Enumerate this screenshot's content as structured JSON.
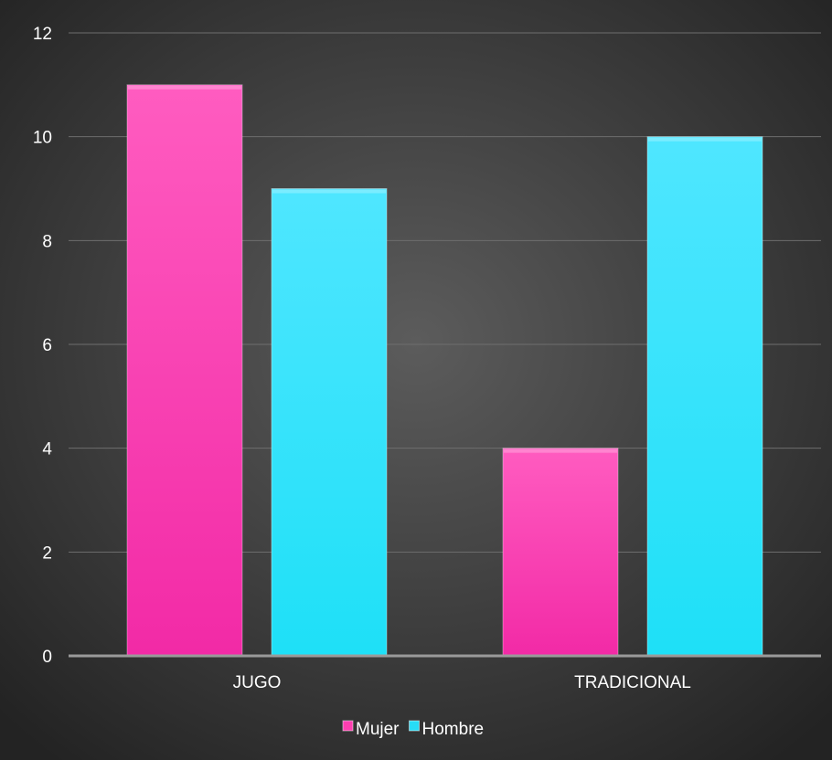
{
  "chart_data": {
    "type": "bar",
    "categories": [
      "JUGO",
      "TRADICIONAL"
    ],
    "series": [
      {
        "name": "Mujer",
        "values": [
          11,
          4
        ],
        "color": "#ff3eb0"
      },
      {
        "name": "Hombre",
        "values": [
          9,
          10
        ],
        "color": "#28dcf6"
      }
    ],
    "ylim": [
      0,
      12
    ],
    "yticks": [
      "0",
      "2",
      "4",
      "6",
      "8",
      "10",
      "12"
    ],
    "grid": true,
    "legend_position": "bottom",
    "title": "",
    "xlabel": "",
    "ylabel": ""
  },
  "colors": {
    "background_center": "#5a5a5a",
    "background_edge": "#262626",
    "gridline": "#6e6e6e",
    "baseline": "#9a9a9a",
    "text": "#ffffff"
  }
}
